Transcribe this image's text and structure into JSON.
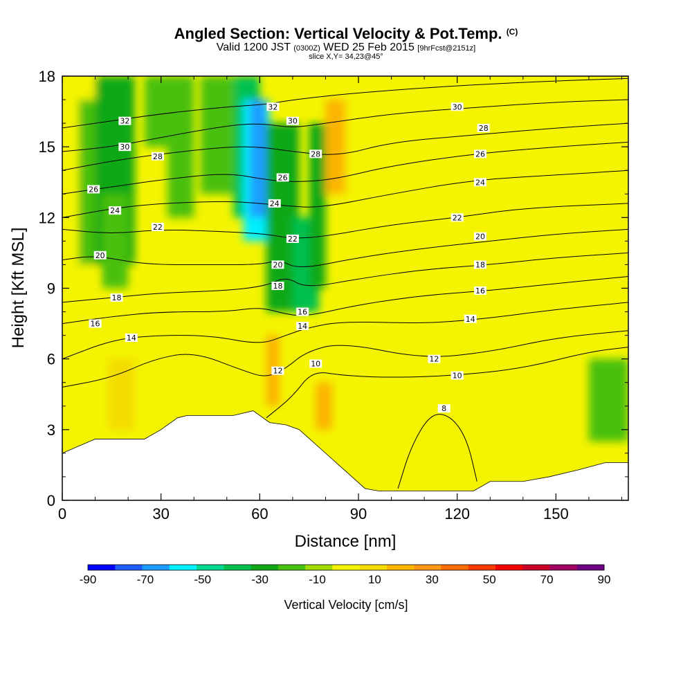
{
  "header": {
    "title": "Angled Section: Vertical Velocity & Pot.Temp.",
    "title_tag": "(C)",
    "valid_prefix": "Valid 1200 JST",
    "valid_utc": "(0300Z)",
    "valid_date": "WED 25 Feb 2015",
    "forecast": "[9hrFcst@2151z]",
    "slice": "slice X,Y= 34,23@45°"
  },
  "chart_data": {
    "type": "heatmap",
    "xlabel": "Distance [nm]",
    "ylabel": "Height [Kft MSL]",
    "xlim": [
      0,
      172
    ],
    "ylim": [
      0,
      18
    ],
    "x_ticks": [
      0,
      30,
      60,
      90,
      120,
      150
    ],
    "y_ticks": [
      0,
      3,
      6,
      9,
      12,
      15,
      18
    ],
    "colorbar": {
      "title": "Vertical Velocity [cm/s]",
      "ticks": [
        -90,
        -70,
        -50,
        -30,
        -10,
        10,
        30,
        50,
        70,
        90
      ],
      "colors": [
        "#0000ff",
        "#1e5cff",
        "#1a9cff",
        "#00f0ff",
        "#00d890",
        "#00c050",
        "#10a818",
        "#48c010",
        "#a0dc00",
        "#f4f400",
        "#f4dc00",
        "#fcb400",
        "#fc9818",
        "#fc6c00",
        "#f83c00",
        "#f40000",
        "#c80028",
        "#a00060",
        "#6c0080"
      ]
    },
    "velocity_cells": [
      {
        "x": [
          0,
          10
        ],
        "z": [
          0,
          18
        ],
        "w": -8
      },
      {
        "x": [
          5,
          12
        ],
        "z": [
          10,
          17
        ],
        "w": -20
      },
      {
        "x": [
          10,
          22
        ],
        "z": [
          10,
          18
        ],
        "w": -25
      },
      {
        "x": [
          12,
          20
        ],
        "z": [
          9,
          13
        ],
        "w": -20
      },
      {
        "x": [
          25,
          40
        ],
        "z": [
          15,
          18
        ],
        "w": -12
      },
      {
        "x": [
          32,
          40
        ],
        "z": [
          12,
          18
        ],
        "w": -20
      },
      {
        "x": [
          42,
          52
        ],
        "z": [
          13,
          18
        ],
        "w": -18
      },
      {
        "x": [
          52,
          60
        ],
        "z": [
          12,
          18
        ],
        "w": -35
      },
      {
        "x": [
          55,
          63
        ],
        "z": [
          11,
          17
        ],
        "w": -55
      },
      {
        "x": [
          57,
          62
        ],
        "z": [
          12,
          17
        ],
        "w": -70
      },
      {
        "x": [
          62,
          72
        ],
        "z": [
          8,
          16
        ],
        "w": -30
      },
      {
        "x": [
          70,
          78
        ],
        "z": [
          8,
          12
        ],
        "w": -40
      },
      {
        "x": [
          75,
          80
        ],
        "z": [
          9,
          16
        ],
        "w": -25
      },
      {
        "x": [
          80,
          86
        ],
        "z": [
          13,
          17
        ],
        "w": 20
      },
      {
        "x": [
          62,
          66
        ],
        "z": [
          4,
          7
        ],
        "w": 25
      },
      {
        "x": [
          77,
          82
        ],
        "z": [
          3,
          5
        ],
        "w": 20
      },
      {
        "x": [
          0,
          10
        ],
        "z": [
          2,
          7
        ],
        "w": 8
      },
      {
        "x": [
          14,
          22
        ],
        "z": [
          3,
          6
        ],
        "w": 12
      },
      {
        "x": [
          105,
          125
        ],
        "z": [
          0,
          3
        ],
        "w": -6
      },
      {
        "x": [
          160,
          172
        ],
        "z": [
          2.5,
          6
        ],
        "w": -20
      },
      {
        "x": [
          135,
          150
        ],
        "z": [
          8,
          18
        ],
        "w": -6
      }
    ],
    "terrain": [
      [
        0,
        2
      ],
      [
        5,
        2.3
      ],
      [
        10,
        2.6
      ],
      [
        25,
        2.6
      ],
      [
        30,
        3
      ],
      [
        35,
        3.5
      ],
      [
        38,
        3.6
      ],
      [
        52,
        3.6
      ],
      [
        58,
        3.8
      ],
      [
        63,
        3.3
      ],
      [
        68,
        3.2
      ],
      [
        72,
        3
      ],
      [
        76,
        2.5
      ],
      [
        80,
        2
      ],
      [
        84,
        1.5
      ],
      [
        88,
        1
      ],
      [
        92,
        0.5
      ],
      [
        96,
        0.4
      ],
      [
        125,
        0.4
      ],
      [
        130,
        0.8
      ],
      [
        140,
        0.8
      ],
      [
        148,
        1
      ],
      [
        157,
        1.3
      ],
      [
        165,
        1.6
      ],
      [
        172,
        1.6
      ]
    ],
    "isentropes": [
      {
        "label": "8",
        "points": [
          [
            102,
            0.5
          ],
          [
            106,
            2.3
          ],
          [
            112,
            3.7
          ],
          [
            118,
            3.6
          ],
          [
            123,
            2.6
          ],
          [
            126,
            0.8
          ]
        ]
      },
      {
        "label": "10",
        "points": [
          [
            62,
            3.5
          ],
          [
            70,
            4.4
          ],
          [
            76,
            5.5
          ],
          [
            85,
            5.3
          ],
          [
            100,
            5.2
          ],
          [
            120,
            5.3
          ],
          [
            140,
            5.6
          ],
          [
            160,
            6.3
          ],
          [
            172,
            6.5
          ]
        ]
      },
      {
        "label": "12",
        "points": [
          [
            0,
            4.8
          ],
          [
            15,
            5.2
          ],
          [
            28,
            6.0
          ],
          [
            40,
            6.3
          ],
          [
            55,
            5.5
          ],
          [
            62,
            5.2
          ],
          [
            68,
            5.6
          ],
          [
            74,
            6.3
          ],
          [
            85,
            6.7
          ],
          [
            110,
            6.0
          ],
          [
            130,
            6.3
          ],
          [
            150,
            6.9
          ],
          [
            172,
            7.2
          ]
        ]
      },
      {
        "label": "14",
        "points": [
          [
            0,
            6.0
          ],
          [
            15,
            6.8
          ],
          [
            28,
            7.0
          ],
          [
            45,
            7.0
          ],
          [
            60,
            6.6
          ],
          [
            68,
            7.0
          ],
          [
            74,
            7.3
          ],
          [
            85,
            7.6
          ],
          [
            110,
            7.5
          ],
          [
            128,
            7.7
          ],
          [
            150,
            8.1
          ],
          [
            172,
            8.4
          ]
        ]
      },
      {
        "label": "16",
        "points": [
          [
            0,
            7.5
          ],
          [
            15,
            7.8
          ],
          [
            30,
            8.0
          ],
          [
            50,
            8.0
          ],
          [
            60,
            8.2
          ],
          [
            68,
            7.9
          ],
          [
            74,
            7.8
          ],
          [
            90,
            8.3
          ],
          [
            110,
            8.7
          ],
          [
            130,
            8.9
          ],
          [
            150,
            9.2
          ],
          [
            172,
            9.5
          ]
        ]
      },
      {
        "label": "18",
        "points": [
          [
            0,
            8.4
          ],
          [
            15,
            8.6
          ],
          [
            30,
            8.8
          ],
          [
            50,
            8.9
          ],
          [
            62,
            9.1
          ],
          [
            68,
            9.5
          ],
          [
            74,
            9.0
          ],
          [
            90,
            9.4
          ],
          [
            110,
            9.8
          ],
          [
            130,
            10.0
          ],
          [
            150,
            10.3
          ],
          [
            172,
            10.5
          ]
        ]
      },
      {
        "label": "20",
        "points": [
          [
            0,
            10.2
          ],
          [
            10,
            10.4
          ],
          [
            25,
            10.0
          ],
          [
            45,
            10.0
          ],
          [
            60,
            10.0
          ],
          [
            66,
            10.2
          ],
          [
            72,
            9.8
          ],
          [
            90,
            10.3
          ],
          [
            110,
            10.7
          ],
          [
            130,
            11.0
          ],
          [
            150,
            11.3
          ],
          [
            172,
            11.5
          ]
        ]
      },
      {
        "label": "22",
        "points": [
          [
            0,
            11.5
          ],
          [
            15,
            11.3
          ],
          [
            30,
            11.5
          ],
          [
            50,
            11.4
          ],
          [
            62,
            11.3
          ],
          [
            70,
            11.1
          ],
          [
            80,
            11.2
          ],
          [
            100,
            11.7
          ],
          [
            120,
            12.0
          ],
          [
            140,
            12.4
          ],
          [
            172,
            12.6
          ]
        ]
      },
      {
        "label": "24",
        "points": [
          [
            0,
            12.0
          ],
          [
            16,
            12.4
          ],
          [
            30,
            12.6
          ],
          [
            50,
            12.7
          ],
          [
            60,
            12.6
          ],
          [
            68,
            12.5
          ],
          [
            78,
            12.4
          ],
          [
            100,
            13.0
          ],
          [
            125,
            13.6
          ],
          [
            150,
            13.8
          ],
          [
            172,
            14.0
          ]
        ]
      },
      {
        "label": "26",
        "points": [
          [
            0,
            13.0
          ],
          [
            15,
            13.3
          ],
          [
            30,
            13.6
          ],
          [
            50,
            13.9
          ],
          [
            62,
            13.6
          ],
          [
            70,
            13.5
          ],
          [
            82,
            13.6
          ],
          [
            100,
            14.2
          ],
          [
            125,
            14.7
          ],
          [
            150,
            15.0
          ],
          [
            172,
            15.2
          ]
        ]
      },
      {
        "label": "28",
        "points": [
          [
            0,
            14.0
          ],
          [
            15,
            14.4
          ],
          [
            30,
            14.7
          ],
          [
            50,
            15.0
          ],
          [
            60,
            15.0
          ],
          [
            70,
            14.8
          ],
          [
            84,
            14.6
          ],
          [
            100,
            15.2
          ],
          [
            125,
            15.5
          ],
          [
            150,
            15.8
          ],
          [
            172,
            16.0
          ]
        ]
      },
      {
        "label": "30",
        "points": [
          [
            0,
            14.8
          ],
          [
            15,
            15.0
          ],
          [
            30,
            15.4
          ],
          [
            50,
            15.9
          ],
          [
            60,
            16.0
          ],
          [
            70,
            15.8
          ],
          [
            80,
            16.0
          ],
          [
            100,
            16.4
          ],
          [
            118,
            16.6
          ],
          [
            150,
            16.9
          ],
          [
            172,
            17.0
          ]
        ]
      },
      {
        "label": "32",
        "points": [
          [
            0,
            15.8
          ],
          [
            15,
            16.1
          ],
          [
            30,
            16.4
          ],
          [
            50,
            16.7
          ],
          [
            62,
            16.8
          ],
          [
            70,
            17.0
          ],
          [
            90,
            17.3
          ],
          [
            120,
            17.6
          ],
          [
            150,
            17.8
          ],
          [
            172,
            17.9
          ]
        ]
      }
    ],
    "contour_labels": [
      {
        "text": "32",
        "x": 19,
        "y": 16.1
      },
      {
        "text": "30",
        "x": 19,
        "y": 15.0
      },
      {
        "text": "28",
        "x": 29,
        "y": 14.6
      },
      {
        "text": "26",
        "x": 9.5,
        "y": 13.2
      },
      {
        "text": "24",
        "x": 16,
        "y": 12.3
      },
      {
        "text": "22",
        "x": 29,
        "y": 11.6
      },
      {
        "text": "20",
        "x": 11.5,
        "y": 10.4
      },
      {
        "text": "18",
        "x": 16.5,
        "y": 8.6
      },
      {
        "text": "16",
        "x": 10,
        "y": 7.5
      },
      {
        "text": "14",
        "x": 21,
        "y": 6.9
      },
      {
        "text": "32",
        "x": 64,
        "y": 16.7
      },
      {
        "text": "30",
        "x": 70,
        "y": 16.1
      },
      {
        "text": "28",
        "x": 77,
        "y": 14.7
      },
      {
        "text": "26",
        "x": 67,
        "y": 13.7
      },
      {
        "text": "24",
        "x": 64.5,
        "y": 12.6
      },
      {
        "text": "22",
        "x": 70,
        "y": 11.1
      },
      {
        "text": "20",
        "x": 65.5,
        "y": 10.0
      },
      {
        "text": "18",
        "x": 65.5,
        "y": 9.1
      },
      {
        "text": "16",
        "x": 73,
        "y": 8.0
      },
      {
        "text": "14",
        "x": 73,
        "y": 7.4
      },
      {
        "text": "12",
        "x": 65.5,
        "y": 5.5
      },
      {
        "text": "10",
        "x": 77,
        "y": 5.8
      },
      {
        "text": "30",
        "x": 120,
        "y": 16.7
      },
      {
        "text": "28",
        "x": 128,
        "y": 15.8
      },
      {
        "text": "26",
        "x": 127,
        "y": 14.7
      },
      {
        "text": "24",
        "x": 127,
        "y": 13.5
      },
      {
        "text": "22",
        "x": 120,
        "y": 12.0
      },
      {
        "text": "20",
        "x": 127,
        "y": 11.2
      },
      {
        "text": "18",
        "x": 127,
        "y": 10.0
      },
      {
        "text": "16",
        "x": 127,
        "y": 8.9
      },
      {
        "text": "14",
        "x": 124,
        "y": 7.7
      },
      {
        "text": "12",
        "x": 113,
        "y": 6.0
      },
      {
        "text": "10",
        "x": 120,
        "y": 5.3
      },
      {
        "text": "8",
        "x": 116,
        "y": 3.9
      }
    ]
  }
}
